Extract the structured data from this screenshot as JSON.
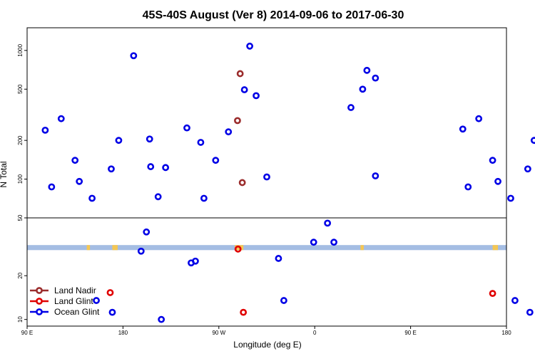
{
  "chart_data": {
    "type": "scatter",
    "title": "45S-40S August (Ver 8)   2014-09-06 to 2017-06-30",
    "xlabel": "Longitude (deg E)",
    "ylabel": "N Total",
    "x_ticks": [
      {
        "value": 90,
        "label": "90 E"
      },
      {
        "value": 180,
        "label": "180"
      },
      {
        "value": 270,
        "label": "90 W"
      },
      {
        "value": 360,
        "label": "0"
      },
      {
        "value": 450,
        "label": "90 E"
      },
      {
        "value": 540,
        "label": "180"
      }
    ],
    "xlim": [
      90,
      540
    ],
    "y_scale": "log",
    "upper_panel": {
      "ylim": [
        50,
        1500
      ],
      "y_ticks": [
        {
          "value": 50,
          "label": "50"
        },
        {
          "value": 100,
          "label": "100"
        },
        {
          "value": 200,
          "label": "200"
        },
        {
          "value": 500,
          "label": "500"
        },
        {
          "value": 1000,
          "label": "1000"
        }
      ]
    },
    "lower_panel": {
      "ylim": [
        9,
        50
      ],
      "y_ticks": [
        {
          "value": 10,
          "label": "10"
        },
        {
          "value": 20,
          "label": "20"
        }
      ]
    },
    "band": {
      "y_range": [
        30.0,
        32.5
      ],
      "color": "#a4bde3",
      "highlight_color": "#f4c653"
    },
    "land_spans": [
      [
        146,
        149
      ],
      [
        170,
        175
      ],
      [
        285,
        293
      ],
      [
        403,
        406
      ],
      [
        527,
        532
      ]
    ],
    "series": [
      {
        "name": "Land Nadir",
        "color": "#9b2d2d",
        "points": [
          [
            287.5,
            285
          ],
          [
            290,
            660
          ],
          [
            292,
            94
          ]
        ]
      },
      {
        "name": "Land Glint",
        "color": "#e00000",
        "points": [
          [
            168,
            15.3
          ],
          [
            288,
            30.5
          ],
          [
            293,
            11.2
          ],
          [
            527,
            15.1
          ]
        ]
      },
      {
        "name": "Ocean Glint",
        "color": "#0000e6",
        "points": [
          [
            107,
            240
          ],
          [
            113,
            87
          ],
          [
            122,
            295
          ],
          [
            135,
            140
          ],
          [
            139,
            96
          ],
          [
            151,
            71
          ],
          [
            155,
            13.5
          ],
          [
            169,
            120
          ],
          [
            170,
            11.2
          ],
          [
            176,
            200
          ],
          [
            190,
            910
          ],
          [
            197,
            29.5
          ],
          [
            202,
            40
          ],
          [
            205,
            205
          ],
          [
            206,
            125
          ],
          [
            213,
            73
          ],
          [
            216,
            10
          ],
          [
            220,
            123
          ],
          [
            240,
            250
          ],
          [
            244,
            24.5
          ],
          [
            248,
            25.2
          ],
          [
            253,
            193
          ],
          [
            256,
            71
          ],
          [
            267,
            140
          ],
          [
            279,
            233
          ],
          [
            299,
            1080
          ],
          [
            294,
            495
          ],
          [
            305,
            445
          ],
          [
            315,
            104
          ],
          [
            326,
            26.3
          ],
          [
            331,
            13.5
          ],
          [
            359,
            34
          ],
          [
            372,
            46
          ],
          [
            378,
            34
          ],
          [
            394,
            360
          ],
          [
            405,
            500
          ],
          [
            409,
            700
          ],
          [
            417,
            610
          ],
          [
            417,
            106
          ],
          [
            499,
            245
          ],
          [
            504,
            87
          ],
          [
            514,
            295
          ],
          [
            527,
            140
          ],
          [
            532,
            96
          ],
          [
            544,
            71
          ],
          [
            548,
            13.5
          ],
          [
            560,
            120
          ],
          [
            562,
            11.2
          ],
          [
            566,
            200
          ]
        ]
      }
    ],
    "legend": {
      "position": "bottom-left",
      "entries": [
        "Land Nadir",
        "Land Glint",
        "Ocean Glint"
      ]
    }
  }
}
